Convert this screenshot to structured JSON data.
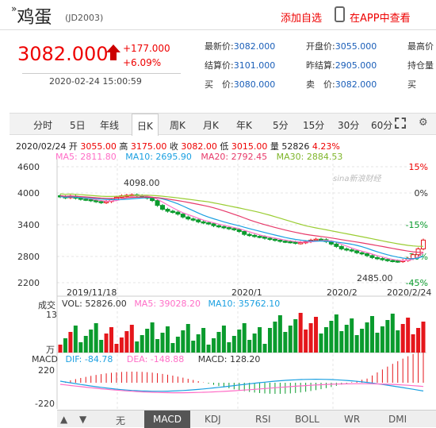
{
  "header": {
    "name_prefix": "»",
    "name": "鸡蛋",
    "code": "(JD2003)",
    "add_favorite": "添加自选",
    "app_view": "在APP中查看"
  },
  "quote": {
    "price": "3082.000",
    "change": "+177.000",
    "change_pct": "+6.09%",
    "datetime": "2020-02-24 15:00:59",
    "fields": [
      {
        "label": "最新价:",
        "value": "3082.000"
      },
      {
        "label": "开盘价:",
        "value": "3055.000"
      },
      {
        "label": "最高价",
        "value": ""
      },
      {
        "label": "结算价:",
        "value": "3101.000"
      },
      {
        "label": "昨结算:",
        "value": "2905.000"
      },
      {
        "label": "持仓量",
        "value": ""
      },
      {
        "label": "买　价:",
        "value": "3080.000"
      },
      {
        "label": "卖　价:",
        "value": "3082.000"
      },
      {
        "label": "买",
        "value": ""
      }
    ]
  },
  "tabs": [
    "分时",
    "5日",
    "年线",
    "日K",
    "周K",
    "月K",
    "年K",
    "5分",
    "15分",
    "30分",
    "60分"
  ],
  "active_tab": "日K",
  "info": {
    "date": "2020/02/24",
    "open_label": "开",
    "open": "3055.00",
    "high_label": "高",
    "high": "3175.00",
    "close_label": "收",
    "close": "3082.00",
    "low_label": "低",
    "low": "3015.00",
    "vol_label": "量",
    "vol": "52826",
    "pct": "4.23%"
  },
  "ma": {
    "ma5": "MA5: 2811.80",
    "ma10": "MA10: 2695.90",
    "ma20": "MA20: 2792.45",
    "ma30": "MA30: 2884.53"
  },
  "watermark": "sina新浪财经",
  "price_axis": [
    "4600",
    "4000",
    "3400",
    "2800",
    "2200"
  ],
  "pct_axis": [
    "15%",
    "0%",
    "-15%",
    "-30%",
    "-45%"
  ],
  "date_axis": [
    "2019/11/18",
    "2020/1",
    "2020/2",
    "2020/2/24"
  ],
  "annotations": {
    "high": "4098.00",
    "low": "2485.00"
  },
  "volume": {
    "label": "成交",
    "vol": "VOL: 52826.00",
    "ma5": "MA5: 39028.20",
    "ma10": "MA10: 35762.10",
    "top": "13",
    "unit": "万"
  },
  "macd": {
    "label": "MACD",
    "dif": "DIF: -84.78",
    "dea": "DEA: -148.88",
    "macd": "MACD: 128.20",
    "top": "220",
    "bottom": "-220"
  },
  "indicator_tabs": [
    "无",
    "MACD",
    "KDJ",
    "RSI",
    "BOLL",
    "WR",
    "DMI"
  ],
  "active_indicator": "MACD",
  "colors": {
    "up": "#e5161b",
    "down": "#0a9b2d",
    "ma5": "#ff6ec7",
    "ma10": "#1ba0e1",
    "ma20": "#e73a6a",
    "ma30": "#9acd32"
  }
}
